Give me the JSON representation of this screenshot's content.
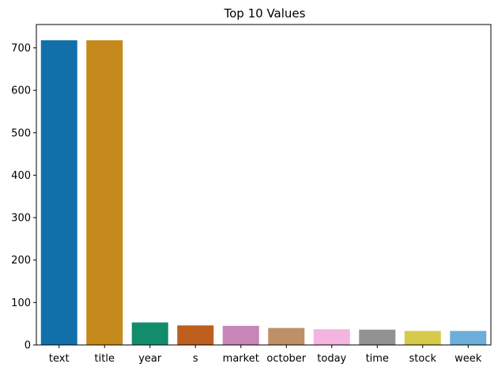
{
  "chart_data": {
    "type": "bar",
    "title": "Top 10 Values",
    "xlabel": "",
    "ylabel": "",
    "categories": [
      "text",
      "title",
      "year",
      "s",
      "market",
      "october",
      "today",
      "time",
      "stock",
      "week"
    ],
    "values": [
      718,
      718,
      53,
      46,
      45,
      40,
      37,
      36,
      33,
      33
    ],
    "colors": [
      "#1170aa",
      "#c68a1c",
      "#138c6b",
      "#bd5e1c",
      "#c786b8",
      "#be9068",
      "#f3b5df",
      "#929292",
      "#d7c94a",
      "#6caed9"
    ],
    "ylim": [
      0,
      755
    ],
    "yticks": [
      0,
      100,
      200,
      300,
      400,
      500,
      600,
      700
    ],
    "grid": false,
    "legend": "none"
  }
}
